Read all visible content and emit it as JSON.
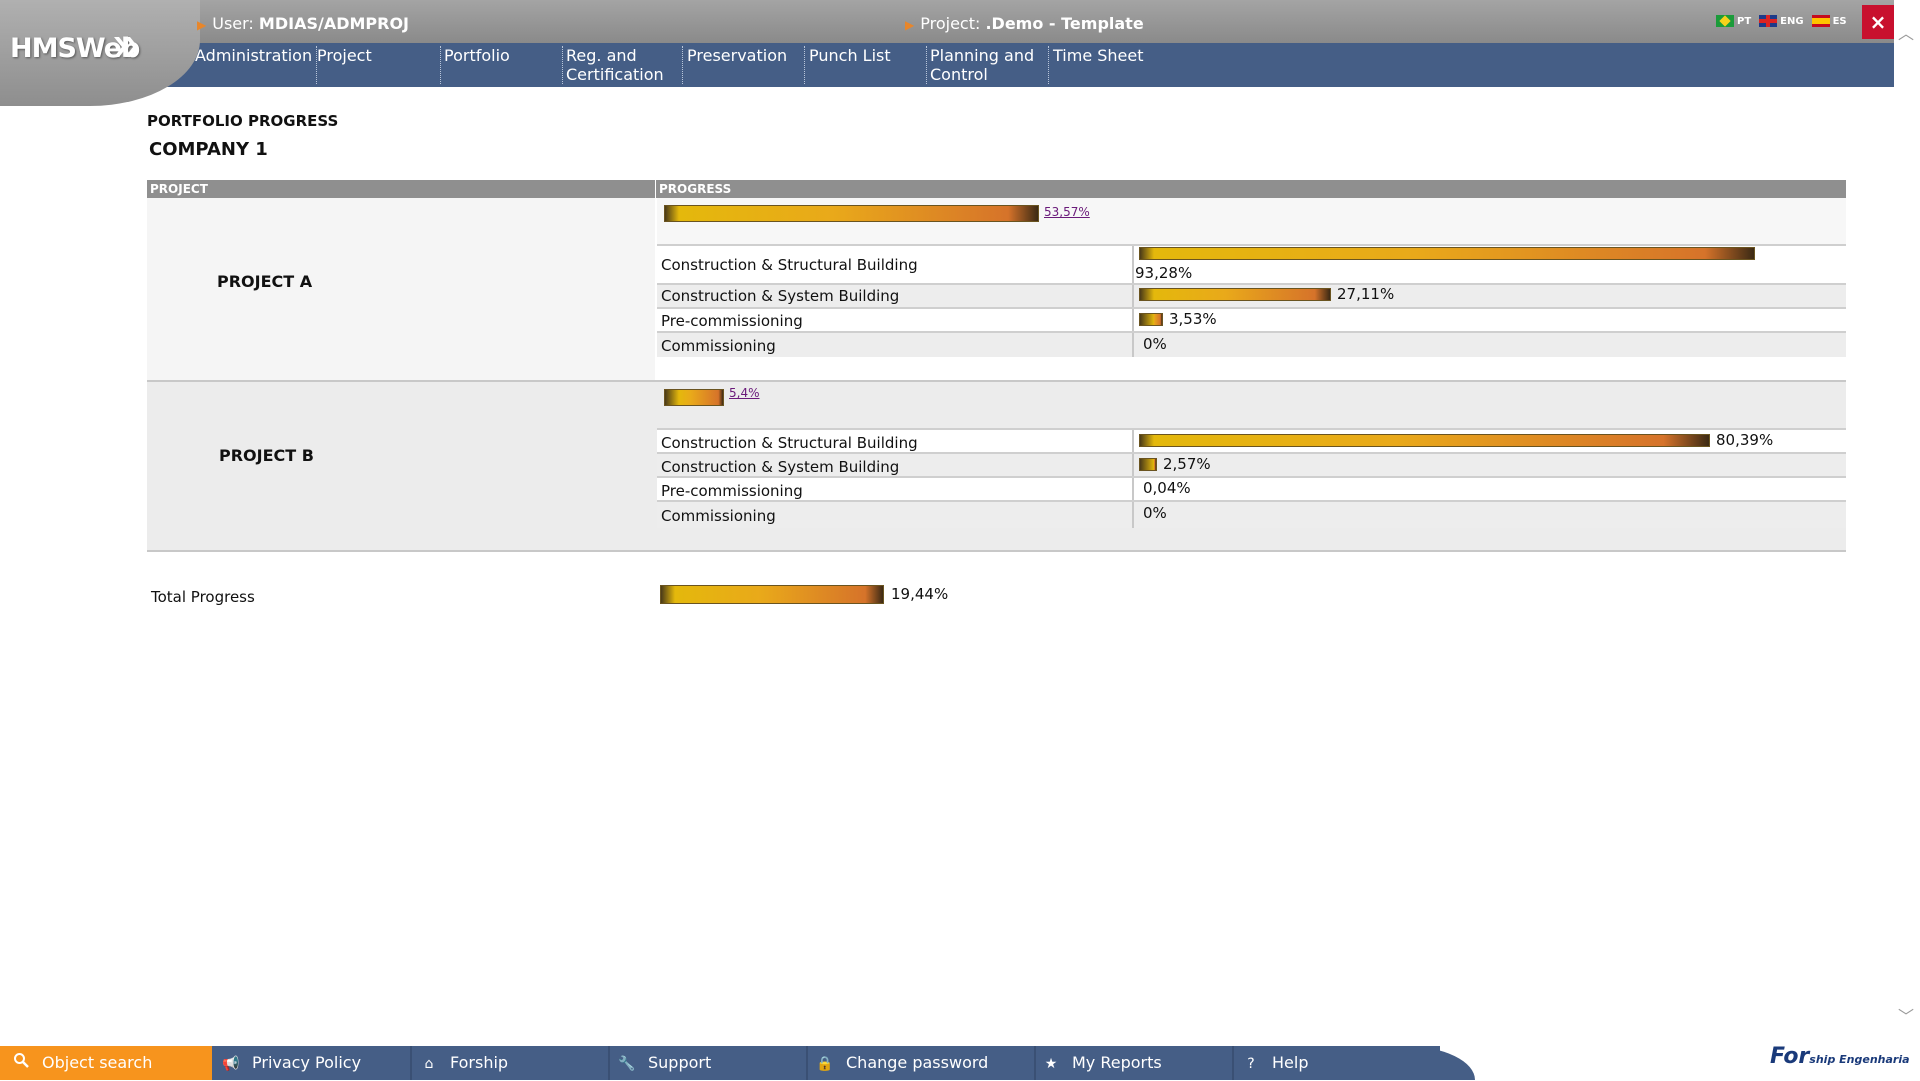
{
  "header": {
    "logo": "HMSWeb",
    "user_label": "User:",
    "user_value": "MDIAS/ADMPROJ",
    "project_label": "Project:",
    "project_value": ".Demo - Template",
    "languages": [
      "PT",
      "ENG",
      "ES"
    ],
    "close": "×"
  },
  "nav": [
    "Administration",
    "Project",
    "Portfolio",
    "Reg. and Certification",
    "Preservation",
    "Punch List",
    "Planning and Control",
    "Time Sheet"
  ],
  "page": {
    "title": "PORTFOLIO PROGRESS",
    "company": "COMPANY 1",
    "col_project": "PROJECT",
    "col_progress": "PROGRESS"
  },
  "projects": [
    {
      "name": "PROJECT  A",
      "total": "53,57%",
      "total_frac": 0.5357,
      "disciplines": [
        {
          "label": "Construction & Structural Building",
          "value": "93,28%",
          "frac": 0.9328
        },
        {
          "label": "Construction & System Building",
          "value": "27,11%",
          "frac": 0.2711
        },
        {
          "label": "Pre-commissioning",
          "value": "3,53%",
          "frac": 0.0353
        },
        {
          "label": "Commissioning",
          "value": "0%",
          "frac": 0
        }
      ]
    },
    {
      "name": "PROJECT B",
      "total": "5,4%",
      "total_frac": 0.054,
      "disciplines": [
        {
          "label": "Construction & Structural Building",
          "value": "80,39%",
          "frac": 0.8039
        },
        {
          "label": "Construction & System Building",
          "value": "2,57%",
          "frac": 0.0257
        },
        {
          "label": "Pre-commissioning",
          "value": "0,04%",
          "frac": 0.0004
        },
        {
          "label": "Commissioning",
          "value": "0%",
          "frac": 0
        }
      ]
    }
  ],
  "total_progress": {
    "label": "Total Progress",
    "value": "19,44%",
    "frac": 0.1944
  },
  "footer": {
    "items": [
      "Object search",
      "Privacy Policy",
      "Forship",
      "Support",
      "Change password",
      "My Reports",
      "Help"
    ],
    "brand": "For",
    "brand_sub": "ship",
    "brand_sub2": "Engenharia"
  },
  "colors": {
    "nav_blue": "#455e86",
    "accent_orange": "#f7941d",
    "close_red": "#c8102e"
  }
}
